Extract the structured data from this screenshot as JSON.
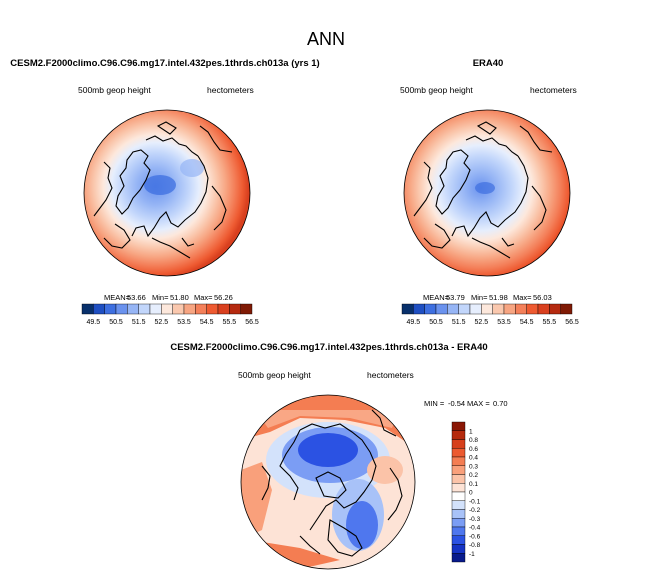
{
  "title": "ANN",
  "colors": {
    "abs_levels": [
      "#08306b",
      "#1f4fc2",
      "#3e6fe0",
      "#6a92ee",
      "#96b5f5",
      "#c2d6fb",
      "#e6eefd",
      "#fde8dc",
      "#fac8ae",
      "#f7a582",
      "#f4805a",
      "#ee5a31",
      "#d9401f",
      "#b52a10",
      "#7f1a05"
    ],
    "diff_levels": [
      "#081a8c",
      "#1533c4",
      "#2b52e3",
      "#4f77ee",
      "#7b9df4",
      "#a8c2f8",
      "#d3e2fb",
      "#ffffff",
      "#fde3d6",
      "#fbc3a8",
      "#f9a07b",
      "#f47d52",
      "#ec5a30",
      "#d6401c",
      "#b52a0d",
      "#8a1705"
    ],
    "coast": "#000000"
  },
  "chart_data": [
    {
      "type": "heatmap",
      "title": "CESM2.F2000climo.C96.C96.mg17.intel.432pes.1thrds.ch013a (yrs 1)",
      "variable": "500mb geop height",
      "units": "hectometers",
      "stats": {
        "mean": "53.66",
        "min": "51.80",
        "max": "56.26"
      },
      "stats_text": {
        "mean_label": "MEAN=",
        "min_label": "Min=",
        "max_label": "Max="
      },
      "colorbar_ticks": [
        "49.5",
        "50.5",
        "51.5",
        "52.5",
        "53.5",
        "54.5",
        "55.5",
        "56.5"
      ],
      "field": {
        "center": 51.8,
        "edge": 56.26
      }
    },
    {
      "type": "heatmap",
      "title": "ERA40",
      "variable": "500mb geop height",
      "units": "hectometers",
      "stats": {
        "mean": "53.79",
        "min": "51.98",
        "max": "56.03"
      },
      "stats_text": {
        "mean_label": "MEAN=",
        "min_label": "Min=",
        "max_label": "Max="
      },
      "colorbar_ticks": [
        "49.5",
        "50.5",
        "51.5",
        "52.5",
        "53.5",
        "54.5",
        "55.5",
        "56.5"
      ],
      "field": {
        "center": 51.98,
        "edge": 56.03
      }
    },
    {
      "type": "heatmap",
      "title": "CESM2.F2000climo.C96.C96.mg17.intel.432pes.1thrds.ch013a - ERA40",
      "variable": "500mb geop height",
      "units": "hectometers",
      "stats": {
        "min": "-0.54",
        "max": "0.70"
      },
      "stats_text": {
        "min_label": "MIN =",
        "max_label": "MAX ="
      },
      "colorbar_ticks": [
        "1",
        "0.8",
        "0.6",
        "0.4",
        "0.3",
        "0.2",
        "0.1",
        "0",
        "-0.1",
        "-0.2",
        "-0.3",
        "-0.4",
        "-0.6",
        "-0.8",
        "-1"
      ],
      "field": {
        "min": -0.54,
        "max": 0.7
      }
    }
  ]
}
